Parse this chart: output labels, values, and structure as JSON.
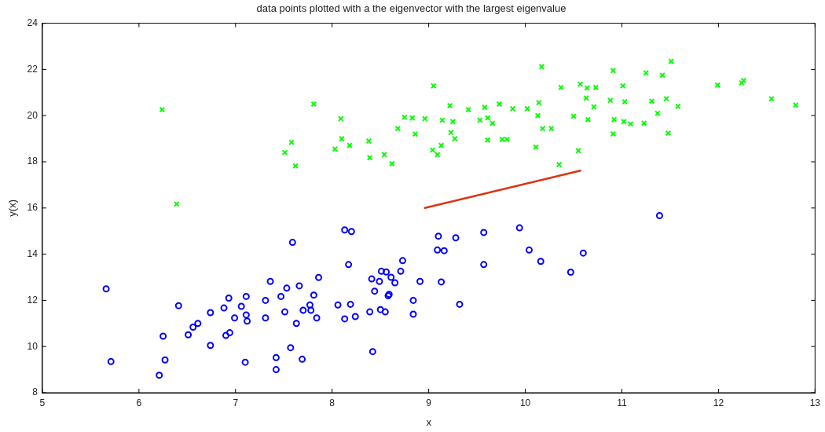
{
  "chart_data": {
    "type": "scatter",
    "title": "data points plotted with a the eigenvector with the largest eigenvalue",
    "xlabel": "x",
    "ylabel": "y(x)",
    "xlim": [
      5,
      13
    ],
    "xticks": [
      5,
      6,
      7,
      8,
      9,
      10,
      11,
      12,
      13
    ],
    "ylim": [
      8,
      24
    ],
    "yticks": [
      8,
      10,
      12,
      14,
      16,
      18,
      20,
      22,
      24
    ],
    "grid": false,
    "legend": false,
    "series": [
      {
        "type": "scatter",
        "marker": "circle",
        "color": "#0000ff",
        "x": [
          5.66,
          5.71,
          6.21,
          6.25,
          6.27,
          6.41,
          6.51,
          6.56,
          6.61,
          6.74,
          6.74,
          6.88,
          6.9,
          6.93,
          6.94,
          6.99,
          7.06,
          7.11,
          7.11,
          7.12,
          7.1,
          7.31,
          7.31,
          7.36,
          7.47,
          7.51,
          7.53,
          7.42,
          7.42,
          7.57,
          7.59,
          7.63,
          7.66,
          7.7,
          7.69,
          7.77,
          7.78,
          7.81,
          7.84,
          7.86,
          8.06,
          8.13,
          8.13,
          8.17,
          8.2,
          8.19,
          8.24,
          8.39,
          8.41,
          8.42,
          8.44,
          8.49,
          8.5,
          8.51,
          8.55,
          8.56,
          8.58,
          8.59,
          8.61,
          8.65,
          8.71,
          8.73,
          8.84,
          8.84,
          8.91,
          9.1,
          9.28,
          9.09,
          9.16,
          9.57,
          9.94,
          9.57,
          10.04,
          10.16,
          10.6,
          10.47,
          11.39,
          9.13,
          9.32
        ],
        "values": [
          12.5,
          9.35,
          8.76,
          10.45,
          9.42,
          11.77,
          10.51,
          10.84,
          11.0,
          11.47,
          10.05,
          11.67,
          10.48,
          12.1,
          10.6,
          11.24,
          11.74,
          12.17,
          11.37,
          11.1,
          9.32,
          12.0,
          11.24,
          12.82,
          12.17,
          11.5,
          12.53,
          9.52,
          9.0,
          9.95,
          14.51,
          11.0,
          12.63,
          11.57,
          9.45,
          11.8,
          11.57,
          12.23,
          11.24,
          12.99,
          11.8,
          15.05,
          11.2,
          13.55,
          14.98,
          11.83,
          11.3,
          11.5,
          12.93,
          9.78,
          12.4,
          12.82,
          11.6,
          13.26,
          11.5,
          13.23,
          12.2,
          12.26,
          13.0,
          12.76,
          13.26,
          13.72,
          12.0,
          11.4,
          12.82,
          14.78,
          14.71,
          14.18,
          14.15,
          14.94,
          15.14,
          13.55,
          14.18,
          13.69,
          14.05,
          13.22,
          15.67,
          12.8,
          11.83
        ]
      },
      {
        "type": "scatter",
        "marker": "cross",
        "color": "#00ff00",
        "x": [
          6.24,
          6.39,
          7.81,
          8.09,
          7.58,
          7.51,
          7.62,
          8.1,
          8.18,
          8.03,
          8.38,
          8.39,
          8.54,
          8.62,
          8.68,
          8.75,
          8.83,
          8.96,
          8.86,
          9.05,
          10.17,
          9.22,
          9.41,
          9.58,
          9.73,
          9.87,
          10.02,
          10.14,
          10.37,
          10.57,
          10.64,
          10.73,
          10.91,
          11.01,
          11.25,
          11.51,
          11.42,
          10.63,
          10.88,
          11.03,
          11.31,
          11.46,
          11.58,
          10.71,
          9.14,
          9.25,
          9.53,
          9.61,
          9.66,
          10.13,
          10.5,
          10.65,
          10.92,
          11.02,
          11.09,
          11.23,
          11.37,
          9.23,
          9.27,
          9.61,
          9.76,
          9.81,
          10.18,
          10.27,
          10.91,
          11.48,
          9.04,
          9.09,
          9.13,
          10.11,
          10.55,
          10.35,
          11.99,
          12.24,
          12.26,
          12.55,
          12.8
        ],
        "values": [
          20.26,
          16.17,
          20.5,
          19.87,
          18.84,
          18.41,
          17.82,
          19.0,
          18.71,
          18.55,
          18.9,
          18.18,
          18.31,
          17.92,
          19.44,
          19.93,
          19.9,
          19.87,
          19.2,
          21.29,
          22.12,
          20.43,
          20.26,
          20.36,
          20.5,
          20.3,
          20.3,
          20.56,
          21.22,
          21.36,
          21.2,
          21.22,
          21.95,
          21.29,
          21.85,
          22.35,
          21.75,
          20.76,
          20.66,
          20.6,
          20.63,
          20.73,
          20.4,
          20.38,
          19.8,
          19.74,
          19.8,
          19.9,
          19.67,
          20.0,
          19.97,
          19.83,
          19.83,
          19.74,
          19.64,
          19.67,
          20.1,
          19.27,
          19.0,
          18.94,
          18.97,
          18.97,
          19.44,
          19.44,
          19.21,
          19.24,
          18.51,
          18.31,
          18.71,
          18.64,
          18.48,
          17.88,
          21.32,
          21.42,
          21.52,
          20.73,
          20.46
        ]
      },
      {
        "type": "line",
        "marker": "none",
        "line_style": "solid",
        "color": "#dd3311",
        "x": [
          8.96,
          10.57
        ],
        "values": [
          16.0,
          17.62
        ]
      }
    ]
  }
}
